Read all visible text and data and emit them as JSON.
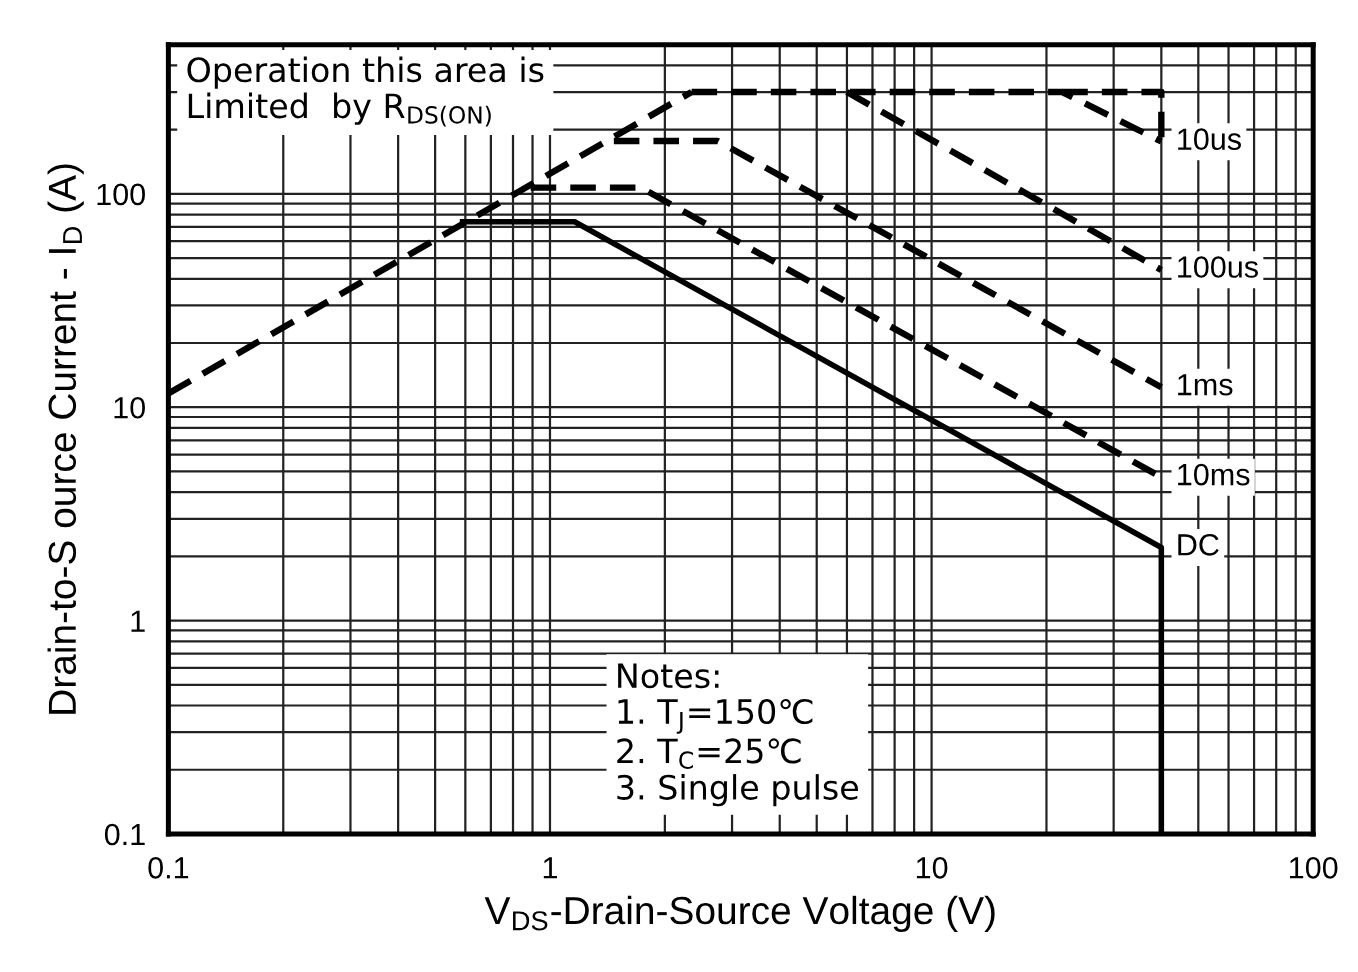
{
  "chart_data": {
    "type": "line",
    "xlabel": "V$_{DS}$-Drain-Source Voltage (V)",
    "ylabel": "Drain-to-S ource Current - I$_{D}$ (A)",
    "log": "xy",
    "xlim": [
      0.1,
      100
    ],
    "ylim": [
      0.1,
      500
    ],
    "xticks": [
      0.1,
      1,
      10,
      100
    ],
    "yticks": [
      0.1,
      1,
      10,
      100
    ],
    "grid": true,
    "legend": false,
    "marker": "none",
    "series": [
      {
        "color": "#000000",
        "line_style": "dashed",
        "x": [
          0.1,
          2.35
        ],
        "values": [
          11.6,
          300
        ]
      },
      {
        "color": "#000000",
        "line_style": "dashed",
        "x": [
          2.35,
          22,
          40
        ],
        "values": [
          300,
          300,
          176
        ]
      },
      {
        "color": "#000000",
        "line_style": "dashed",
        "x": [
          22,
          40,
          40
        ],
        "values": [
          300,
          300,
          176
        ]
      },
      {
        "color": "#000000",
        "line_style": "dashed",
        "x": [
          6.0,
          40
        ],
        "values": [
          300,
          44
        ]
      },
      {
        "color": "#000000",
        "line_style": "dashed",
        "x": [
          1.47,
          2.75,
          40
        ],
        "values": [
          177,
          177,
          12.4
        ]
      },
      {
        "color": "#000000",
        "line_style": "dashed",
        "x": [
          0.89,
          1.73,
          40
        ],
        "values": [
          107,
          107,
          4.7
        ]
      },
      {
        "color": "#000000",
        "line_style": "solid",
        "x": [
          0.59,
          1.16,
          40,
          40
        ],
        "values": [
          74,
          74,
          2.2,
          0.1
        ]
      }
    ],
    "annotations": [
      "Operation this area is\nLimited  by R$_{DS(ON)}$",
      "Notes:\n1. T$_{J}$=150℃\n2. T$_{C}$=25℃\n3. Single pulse",
      "10us",
      "100us",
      "1ms",
      "10ms",
      "DC"
    ]
  }
}
